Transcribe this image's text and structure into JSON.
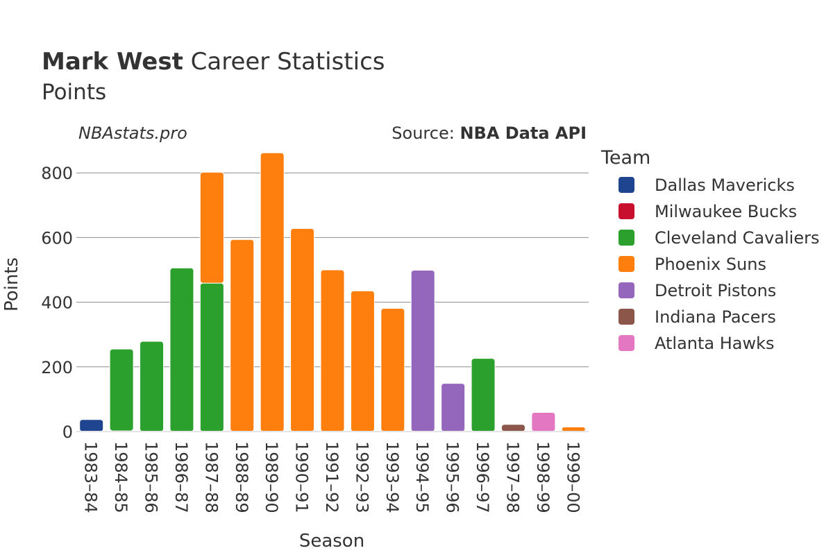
{
  "header": {
    "title_bold": "Mark West",
    "title_rest": " Career Statistics",
    "subtitle": "Points",
    "watermark": "NBAstats.pro",
    "source_prefix": "Source: ",
    "source_name": "NBA Data API"
  },
  "legend": {
    "title": "Team"
  },
  "chart_data": {
    "type": "bar",
    "stacked": true,
    "xlabel": "Season",
    "ylabel": "Points",
    "ylim": [
      0,
      880
    ],
    "yticks": [
      0,
      200,
      400,
      600,
      800
    ],
    "grid": true,
    "legend_position": "right",
    "categories": [
      "1983–84",
      "1984–85",
      "1985–86",
      "1986–87",
      "1987–88",
      "1988–89",
      "1989–90",
      "1990–91",
      "1991–92",
      "1992–93",
      "1993–94",
      "1994–95",
      "1995–96",
      "1996–97",
      "1997–98",
      "1998–99",
      "1999–00"
    ],
    "series": [
      {
        "name": "Dallas Mavericks",
        "color": "#1f4590",
        "values": [
          37,
          0,
          0,
          0,
          0,
          0,
          0,
          0,
          0,
          0,
          0,
          0,
          0,
          0,
          0,
          0,
          0
        ]
      },
      {
        "name": "Milwaukee Bucks",
        "color": "#c8102e",
        "values": [
          0,
          2,
          0,
          0,
          0,
          0,
          0,
          0,
          0,
          0,
          0,
          0,
          0,
          0,
          0,
          0,
          0
        ]
      },
      {
        "name": "Cleveland Cavaliers",
        "color": "#2ca02c",
        "values": [
          0,
          253,
          279,
          506,
          459,
          0,
          0,
          0,
          0,
          0,
          0,
          0,
          0,
          226,
          0,
          0,
          0
        ]
      },
      {
        "name": "Phoenix Suns",
        "color": "#ff7f0e",
        "values": [
          0,
          0,
          0,
          0,
          343,
          594,
          862,
          628,
          500,
          435,
          381,
          0,
          0,
          0,
          0,
          0,
          14
        ]
      },
      {
        "name": "Detroit Pistons",
        "color": "#9467bd",
        "values": [
          0,
          0,
          0,
          0,
          0,
          0,
          0,
          0,
          0,
          0,
          0,
          499,
          149,
          0,
          0,
          0,
          0
        ]
      },
      {
        "name": "Indiana Pacers",
        "color": "#8c564b",
        "values": [
          0,
          0,
          0,
          0,
          0,
          0,
          0,
          0,
          0,
          0,
          0,
          0,
          0,
          0,
          22,
          0,
          0
        ]
      },
      {
        "name": "Atlanta Hawks",
        "color": "#e377c2",
        "values": [
          0,
          0,
          0,
          0,
          0,
          0,
          0,
          0,
          0,
          0,
          0,
          0,
          0,
          0,
          0,
          59,
          0
        ]
      }
    ]
  }
}
